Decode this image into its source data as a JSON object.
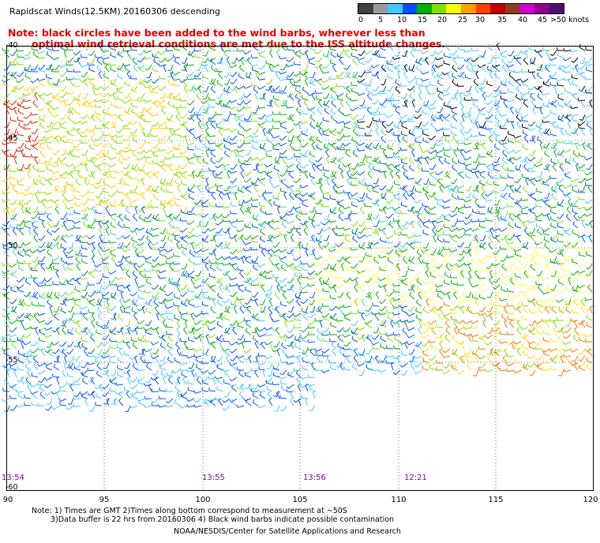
{
  "header": {
    "title": "Rapidscat Winds(12.5KM) 20160306 descending",
    "note_line1": "Note: black circles have been added to the wind barbs, wherever less than",
    "note_line2": "optimal wind retrieval conditions are met due to the ISS altitude changes."
  },
  "color_scale": {
    "unit": "knots",
    "colors": [
      "#404040",
      "#9a9a9a",
      "#40c8ff",
      "#0050ff",
      "#00b000",
      "#80e000",
      "#ffff00",
      "#ffa000",
      "#ff4000",
      "#c00000",
      "#884020",
      "#d000d0",
      "#900090",
      "#501070"
    ],
    "labels": [
      "0",
      "5",
      "10",
      "15",
      "20",
      "25",
      "30",
      "35",
      "40",
      "45",
      ">50 knots"
    ]
  },
  "map": {
    "lat_labels": [
      "-40",
      "-45",
      "-50",
      "-55",
      "-60"
    ],
    "lon_labels": [
      "90",
      "95",
      "100",
      "105",
      "110",
      "115",
      "120"
    ],
    "times": [
      "13:54",
      "13:55",
      "13:56",
      "12:21"
    ]
  },
  "footer": {
    "note_line1": "Note: 1) Times are GMT 2)Times along bottom correspond to measurement at ~50S",
    "note_line2": "3)Data buffer is 22 hrs from 20160306 4) Black wind barbs indicate possible contamination",
    "credit": "NOAA/NESDIS/Center for Satellite Applications and Research"
  }
}
